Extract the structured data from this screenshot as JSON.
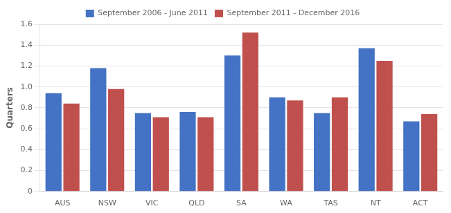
{
  "chart_data": {
    "type": "bar",
    "ylabel": "Quarters",
    "categories": [
      "AUS",
      "NSW",
      "VIC",
      "QLD",
      "SA",
      "WA",
      "TAS",
      "NT",
      "ACT"
    ],
    "series": [
      {
        "name": "September 2006 - June 2011",
        "color": "#4472C4",
        "values": [
          0.94,
          1.18,
          0.75,
          0.76,
          1.3,
          0.9,
          0.75,
          1.37,
          0.67
        ]
      },
      {
        "name": "September 2011 - December 2016",
        "color": "#C0504D",
        "values": [
          0.84,
          0.98,
          0.71,
          0.71,
          1.52,
          0.87,
          0.9,
          1.25,
          0.74
        ]
      }
    ],
    "ylim": [
      0,
      1.6
    ],
    "yticks": [
      0,
      0.2,
      0.4,
      0.6,
      0.8,
      {
        "value": 1.0,
        "label": "1.0"
      },
      1.2,
      1.4,
      1.6
    ],
    "grid": true,
    "legend": "top"
  }
}
